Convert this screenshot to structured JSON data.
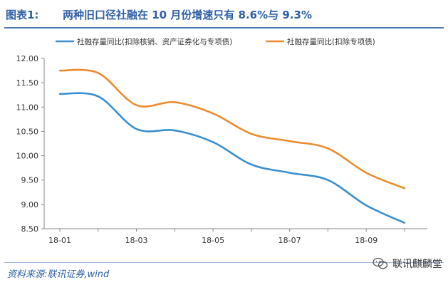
{
  "header": {
    "figure_label": "图表1:",
    "title": "两种旧口径社融在 10 月份增速只有 8.6%与 9.3%"
  },
  "footer": {
    "source": "资料来源:联讯证券,wind",
    "watermark": "联讯麒麟堂"
  },
  "icons": {
    "watermark": "wechat-icon"
  },
  "chart_data": {
    "type": "line",
    "title": "",
    "xlabel": "",
    "ylabel": "",
    "x_ticks": [
      "18-01",
      "18-03",
      "18-05",
      "18-07",
      "18-09"
    ],
    "x": [
      "18-01",
      "18-02",
      "18-03",
      "18-04",
      "18-05",
      "18-06",
      "18-07",
      "18-08",
      "18-09",
      "18-10"
    ],
    "ylim": [
      8.5,
      12.0
    ],
    "y_ticks": [
      "8.50",
      "9.00",
      "9.50",
      "10.00",
      "10.50",
      "11.00",
      "11.50",
      "12.00"
    ],
    "grid": false,
    "legend_position": "top",
    "series": [
      {
        "name": "社融存量同比(扣除核销、资产证券化与专项债)",
        "color": "#3a8fd0",
        "values": [
          11.27,
          11.22,
          10.55,
          10.52,
          10.28,
          9.82,
          9.65,
          9.5,
          8.98,
          8.62
        ]
      },
      {
        "name": "社融存量同比(扣除专项债)",
        "color": "#ec8b2d",
        "values": [
          11.75,
          11.7,
          11.04,
          11.1,
          10.87,
          10.45,
          10.3,
          10.15,
          9.65,
          9.33
        ]
      }
    ]
  }
}
